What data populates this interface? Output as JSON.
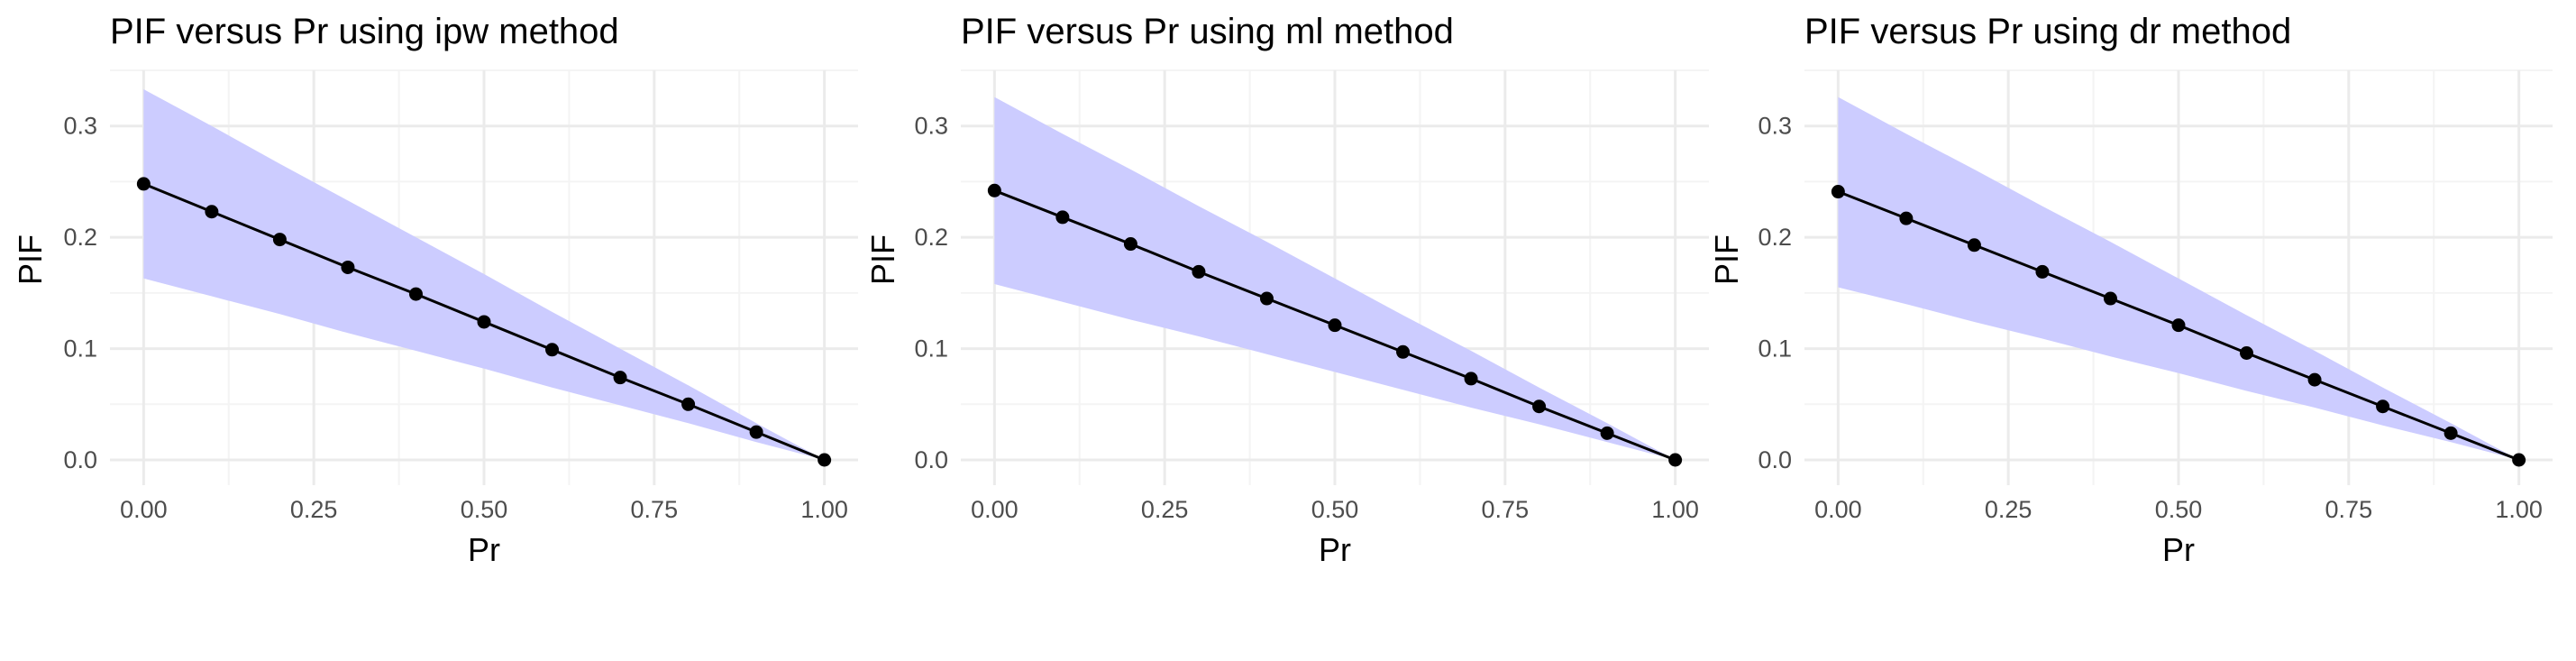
{
  "chart_data": [
    {
      "type": "line",
      "title": "PIF versus Pr using ipw method",
      "xlabel": "Pr",
      "ylabel": "PIF",
      "xlim": [
        0,
        1
      ],
      "ylim": [
        0,
        0.35
      ],
      "xticks": [
        0,
        0.25,
        0.5,
        0.75,
        1
      ],
      "xtick_labels": [
        "0.00",
        "0.25",
        "0.50",
        "0.75",
        "1.00"
      ],
      "yticks": [
        0,
        0.1,
        0.2,
        0.3
      ],
      "ytick_labels": [
        "0.0",
        "0.1",
        "0.2",
        "0.3"
      ],
      "grid": true,
      "x": [
        0,
        0.1,
        0.2,
        0.3,
        0.4,
        0.5,
        0.6,
        0.7,
        0.8,
        0.9,
        1.0
      ],
      "y": [
        0.248,
        0.223,
        0.198,
        0.173,
        0.149,
        0.124,
        0.099,
        0.074,
        0.05,
        0.025,
        0.0
      ],
      "lower": [
        0.163,
        0.147,
        0.131,
        0.114,
        0.098,
        0.082,
        0.065,
        0.049,
        0.033,
        0.016,
        0.0
      ],
      "upper": [
        0.333,
        0.3,
        0.266,
        0.233,
        0.2,
        0.167,
        0.133,
        0.1,
        0.067,
        0.033,
        0.0
      ]
    },
    {
      "type": "line",
      "title": "PIF versus Pr using ml method",
      "xlabel": "Pr",
      "ylabel": "PIF",
      "xlim": [
        0,
        1
      ],
      "ylim": [
        0,
        0.35
      ],
      "xticks": [
        0,
        0.25,
        0.5,
        0.75,
        1
      ],
      "xtick_labels": [
        "0.00",
        "0.25",
        "0.50",
        "0.75",
        "1.00"
      ],
      "yticks": [
        0,
        0.1,
        0.2,
        0.3
      ],
      "ytick_labels": [
        "0.0",
        "0.1",
        "0.2",
        "0.3"
      ],
      "grid": true,
      "x": [
        0,
        0.1,
        0.2,
        0.3,
        0.4,
        0.5,
        0.6,
        0.7,
        0.8,
        0.9,
        1.0
      ],
      "y": [
        0.242,
        0.218,
        0.194,
        0.169,
        0.145,
        0.121,
        0.097,
        0.073,
        0.048,
        0.024,
        0.0
      ],
      "lower": [
        0.158,
        0.142,
        0.126,
        0.111,
        0.095,
        0.079,
        0.063,
        0.047,
        0.032,
        0.016,
        0.0
      ],
      "upper": [
        0.326,
        0.293,
        0.261,
        0.228,
        0.196,
        0.163,
        0.13,
        0.098,
        0.065,
        0.033,
        0.0
      ]
    },
    {
      "type": "line",
      "title": "PIF versus Pr using dr method",
      "xlabel": "Pr",
      "ylabel": "PIF",
      "xlim": [
        0,
        1
      ],
      "ylim": [
        0,
        0.35
      ],
      "xticks": [
        0,
        0.25,
        0.5,
        0.75,
        1
      ],
      "xtick_labels": [
        "0.00",
        "0.25",
        "0.50",
        "0.75",
        "1.00"
      ],
      "yticks": [
        0,
        0.1,
        0.2,
        0.3
      ],
      "ytick_labels": [
        "0.0",
        "0.1",
        "0.2",
        "0.3"
      ],
      "grid": true,
      "x": [
        0,
        0.1,
        0.2,
        0.3,
        0.4,
        0.5,
        0.6,
        0.7,
        0.8,
        0.9,
        1.0
      ],
      "y": [
        0.241,
        0.217,
        0.193,
        0.169,
        0.145,
        0.121,
        0.096,
        0.072,
        0.048,
        0.024,
        0.0
      ],
      "lower": [
        0.155,
        0.14,
        0.124,
        0.109,
        0.093,
        0.078,
        0.062,
        0.047,
        0.031,
        0.016,
        0.0
      ],
      "upper": [
        0.326,
        0.293,
        0.261,
        0.228,
        0.196,
        0.163,
        0.13,
        0.098,
        0.065,
        0.033,
        0.0
      ]
    }
  ],
  "style": {
    "band_color": "#ccccff",
    "line_color": "#000000",
    "point_color": "#000000",
    "grid_major": "#ebebeb",
    "grid_minor": "#f4f4f4",
    "tick_text": "#4d4d4d",
    "title_text": "#000000"
  }
}
